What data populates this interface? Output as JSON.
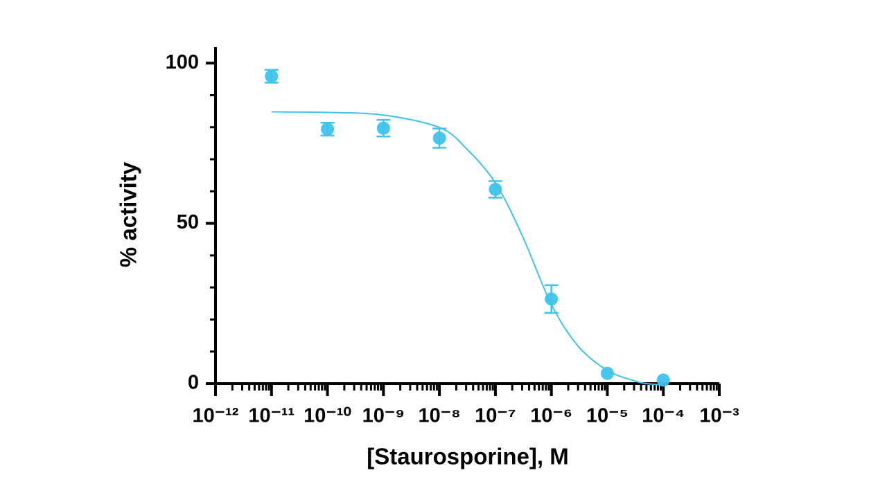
{
  "chart_data": {
    "type": "scatter",
    "x_label": "[Staurosporine], M",
    "y_label": "% activity",
    "x_log": true,
    "log_minor_ticks": true,
    "xlim": [
      1e-12,
      0.001
    ],
    "xticks": [
      {
        "value": 1e-12,
        "label": "10⁻¹²"
      },
      {
        "value": 1e-11,
        "label": "10⁻¹¹"
      },
      {
        "value": 1e-10,
        "label": "10⁻¹⁰"
      },
      {
        "value": 1e-09,
        "label": "10⁻⁹"
      },
      {
        "value": 1e-08,
        "label": "10⁻⁸"
      },
      {
        "value": 1e-07,
        "label": "10⁻⁷"
      },
      {
        "value": 1e-06,
        "label": "10⁻⁶"
      },
      {
        "value": 1e-05,
        "label": "10⁻⁵"
      },
      {
        "value": 0.0001,
        "label": "10⁻⁴"
      },
      {
        "value": 0.001,
        "label": "10⁻³"
      }
    ],
    "ylim": [
      0,
      105
    ],
    "yticks": [
      0,
      50,
      100
    ],
    "yminorticks": [
      10,
      20,
      30,
      40,
      60,
      70,
      80,
      90
    ],
    "series": [
      {
        "type": "points",
        "color": "#3ec3ea",
        "x": [
          1e-11,
          1e-10,
          1e-09,
          1e-08,
          1e-07,
          1e-06,
          1e-05,
          0.0001
        ],
        "values": [
          95.9,
          79.4,
          79.7,
          76.6,
          60.6,
          26.4,
          3.2,
          1.1
        ],
        "errors": [
          2,
          2,
          2.6,
          3,
          2.6,
          4.3,
          null,
          null
        ]
      },
      {
        "type": "curve",
        "color": "#3ec3ea",
        "x": [
          1e-11,
          1e-10,
          1e-09,
          1e-08,
          3e-08,
          1e-07,
          3e-07,
          1e-06,
          3e-06,
          1e-05,
          3e-05,
          5e-05,
          0.0001
        ],
        "values": [
          84.8,
          84.6,
          83.8,
          79.9,
          73.4,
          62.6,
          46.3,
          24.7,
          11.7,
          4.1,
          0.9,
          0,
          -0.4
        ]
      }
    ]
  }
}
